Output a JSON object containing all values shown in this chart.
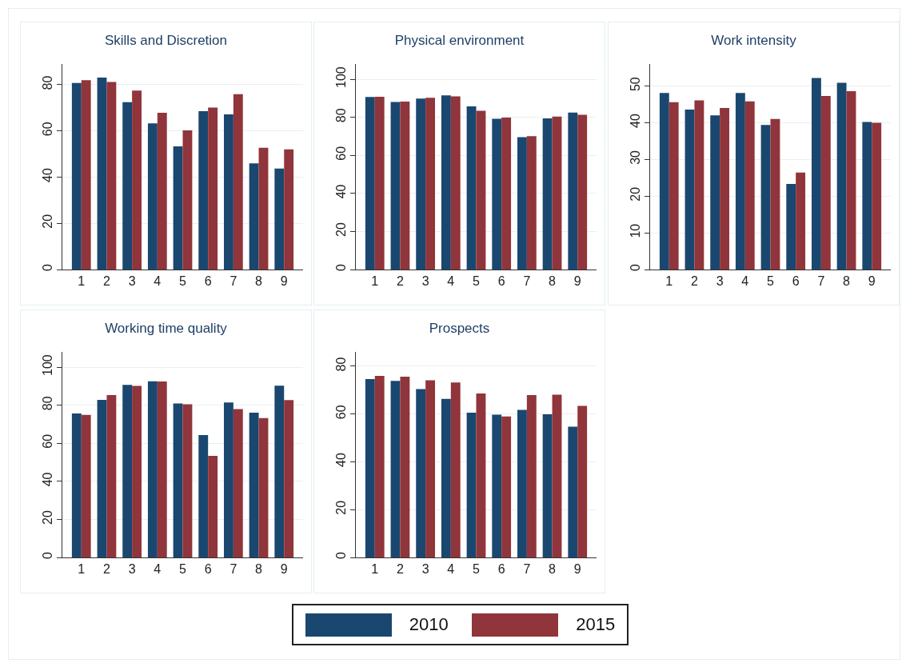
{
  "chart_data": [
    {
      "type": "bar",
      "title": "Skills and Discretion",
      "categories": [
        "1",
        "2",
        "3",
        "4",
        "5",
        "6",
        "7",
        "8",
        "9"
      ],
      "series": [
        {
          "name": "2010",
          "color": "#1a476f",
          "values": [
            80.8,
            83.1,
            72.5,
            63.3,
            53.3,
            68.6,
            67.2,
            46.0,
            43.7
          ]
        },
        {
          "name": "2015",
          "color": "#90353b",
          "values": [
            82.0,
            81.2,
            77.5,
            67.9,
            60.3,
            70.1,
            75.9,
            52.7,
            52.0
          ]
        }
      ],
      "ylim": [
        0,
        89
      ],
      "yticks": [
        0,
        20,
        40,
        60,
        80
      ],
      "grid": "y",
      "legend": "bottom"
    },
    {
      "type": "bar",
      "title": "Physical environment",
      "categories": [
        "1",
        "2",
        "3",
        "4",
        "5",
        "6",
        "7",
        "8",
        "9"
      ],
      "series": [
        {
          "name": "2010",
          "color": "#1a476f",
          "values": [
            90.7,
            88.0,
            89.8,
            91.5,
            85.7,
            79.2,
            69.5,
            79.4,
            82.5
          ]
        },
        {
          "name": "2015",
          "color": "#90353b",
          "values": [
            90.8,
            88.3,
            90.2,
            91.0,
            83.4,
            79.8,
            70.1,
            80.4,
            81.3
          ]
        }
      ],
      "ylim": [
        0,
        108
      ],
      "yticks": [
        0,
        20,
        40,
        60,
        80,
        100
      ],
      "grid": "y",
      "legend": "bottom"
    },
    {
      "type": "bar",
      "title": "Work intensity",
      "categories": [
        "1",
        "2",
        "3",
        "4",
        "5",
        "6",
        "7",
        "8",
        "9"
      ],
      "series": [
        {
          "name": "2010",
          "color": "#1a476f",
          "values": [
            48.1,
            43.6,
            42.0,
            48.1,
            39.4,
            23.3,
            52.2,
            50.9,
            40.2
          ]
        },
        {
          "name": "2015",
          "color": "#90353b",
          "values": [
            45.6,
            46.1,
            44.0,
            45.8,
            41.0,
            26.4,
            47.3,
            48.6,
            40.0
          ]
        }
      ],
      "ylim": [
        0,
        56
      ],
      "yticks": [
        0,
        10,
        20,
        30,
        40,
        50
      ],
      "grid": "y",
      "legend": "bottom"
    },
    {
      "type": "bar",
      "title": "Working time quality",
      "categories": [
        "1",
        "2",
        "3",
        "4",
        "5",
        "6",
        "7",
        "8",
        "9"
      ],
      "series": [
        {
          "name": "2010",
          "color": "#1a476f",
          "values": [
            75.6,
            82.8,
            90.7,
            92.6,
            80.9,
            64.3,
            81.4,
            76.1,
            90.2
          ]
        },
        {
          "name": "2015",
          "color": "#90353b",
          "values": [
            74.9,
            85.3,
            90.1,
            92.5,
            80.5,
            53.4,
            78.0,
            73.2,
            82.7
          ]
        }
      ],
      "ylim": [
        0,
        108
      ],
      "yticks": [
        0,
        20,
        40,
        60,
        80,
        100
      ],
      "grid": "y",
      "legend": "bottom"
    },
    {
      "type": "bar",
      "title": "Prospects",
      "categories": [
        "1",
        "2",
        "3",
        "4",
        "5",
        "6",
        "7",
        "8",
        "9"
      ],
      "series": [
        {
          "name": "2010",
          "color": "#1a476f",
          "values": [
            74.6,
            73.9,
            70.4,
            66.3,
            60.6,
            59.7,
            61.7,
            59.9,
            54.7
          ]
        },
        {
          "name": "2015",
          "color": "#90353b",
          "values": [
            76.0,
            75.6,
            74.1,
            73.2,
            68.6,
            59.0,
            67.9,
            68.1,
            63.4
          ]
        }
      ],
      "ylim": [
        0,
        86
      ],
      "yticks": [
        0,
        20,
        40,
        60,
        80
      ],
      "grid": "y",
      "legend": "bottom"
    }
  ]
}
